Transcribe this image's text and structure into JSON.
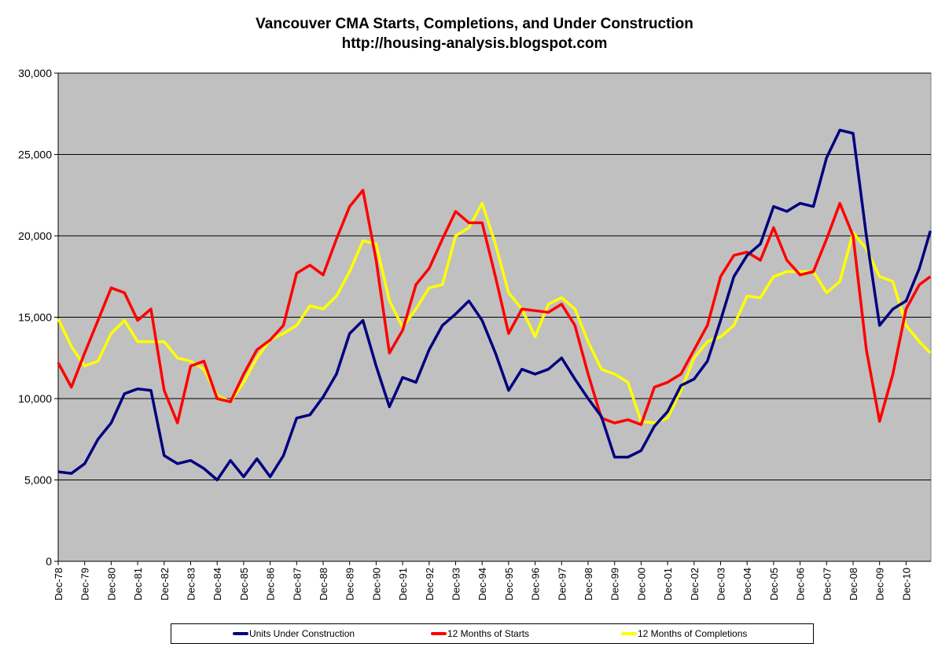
{
  "chart_data": {
    "type": "line",
    "title": "Vancouver CMA Starts, Completions, and Under Construction",
    "subtitle": "http://housing-analysis.blogspot.com",
    "xlabel": "",
    "ylabel": "",
    "ylim": [
      0,
      30000
    ],
    "yticks": [
      "0",
      "5,000",
      "10,000",
      "15,000",
      "20,000",
      "25,000",
      "30,000"
    ],
    "xticks": [
      "Dec-78",
      "Dec-79",
      "Dec-80",
      "Dec-81",
      "Dec-82",
      "Dec-83",
      "Dec-84",
      "Dec-85",
      "Dec-86",
      "Dec-87",
      "Dec-88",
      "Dec-89",
      "Dec-90",
      "Dec-91",
      "Dec-92",
      "Dec-93",
      "Dec-94",
      "Dec-95",
      "Dec-96",
      "Dec-97",
      "Dec-98",
      "Dec-99",
      "Dec-00",
      "Dec-01",
      "Dec-02",
      "Dec-03",
      "Dec-04",
      "Dec-05",
      "Dec-06",
      "Dec-07",
      "Dec-08",
      "Dec-09",
      "Dec-10"
    ],
    "grid": "horizontal",
    "legend_position": "bottom",
    "plot_background": "#c0c0c0",
    "x": [
      "1978-12",
      "1979-06",
      "1979-12",
      "1980-06",
      "1980-12",
      "1981-06",
      "1981-12",
      "1982-06",
      "1982-12",
      "1983-06",
      "1983-12",
      "1984-06",
      "1984-12",
      "1985-06",
      "1985-12",
      "1986-06",
      "1986-12",
      "1987-06",
      "1987-12",
      "1988-06",
      "1988-12",
      "1989-06",
      "1989-12",
      "1990-06",
      "1990-12",
      "1991-06",
      "1991-12",
      "1992-06",
      "1992-12",
      "1993-06",
      "1993-12",
      "1994-06",
      "1994-12",
      "1995-06",
      "1995-12",
      "1996-06",
      "1996-12",
      "1997-06",
      "1997-12",
      "1998-06",
      "1998-12",
      "1999-06",
      "1999-12",
      "2000-06",
      "2000-12",
      "2001-06",
      "2001-12",
      "2002-06",
      "2002-12",
      "2003-06",
      "2003-12",
      "2004-06",
      "2004-12",
      "2005-06",
      "2005-12",
      "2006-06",
      "2006-12",
      "2007-06",
      "2007-12",
      "2008-06",
      "2008-12",
      "2009-06",
      "2009-12",
      "2010-06",
      "2010-12",
      "2011-06",
      "2011-11"
    ],
    "series": [
      {
        "name": "Units Under Construction",
        "color": "#000080",
        "values": [
          5500,
          5400,
          6000,
          7500,
          8500,
          10300,
          10600,
          10500,
          6500,
          6000,
          6200,
          5700,
          5000,
          6200,
          5200,
          6300,
          5200,
          6500,
          8800,
          9000,
          10100,
          11500,
          14000,
          14800,
          12000,
          9500,
          11300,
          11000,
          13000,
          14500,
          15200,
          16000,
          14800,
          12800,
          10500,
          11800,
          11500,
          11800,
          12500,
          11200,
          10000,
          8900,
          6400,
          6400,
          6800,
          8300,
          9200,
          10800,
          11200,
          12300,
          14800,
          17500,
          18800,
          19500,
          21800,
          21500,
          22000,
          21800,
          24800,
          26500,
          26300,
          20000,
          14500,
          15500,
          16000,
          18000,
          20300
        ]
      },
      {
        "name": "12 Months of Starts",
        "color": "#ff0000",
        "values": [
          12200,
          10700,
          12800,
          14800,
          16800,
          16500,
          14800,
          15500,
          10500,
          8500,
          12000,
          12300,
          10000,
          9800,
          11500,
          13000,
          13600,
          14500,
          17700,
          18200,
          17600,
          19800,
          21800,
          22800,
          18500,
          12800,
          14200,
          17000,
          18000,
          19800,
          21500,
          20800,
          20800,
          17500,
          14000,
          15500,
          15400,
          15300,
          15800,
          14500,
          11500,
          8800,
          8500,
          8700,
          8400,
          10700,
          11000,
          11500,
          13000,
          14500,
          17500,
          18800,
          19000,
          18500,
          20500,
          18500,
          17600,
          17800,
          19800,
          22000,
          20000,
          13000,
          8600,
          11500,
          15500,
          17000,
          17500
        ]
      },
      {
        "name": "12 Months of Completions",
        "color": "#ffff00",
        "values": [
          14900,
          13200,
          12000,
          12300,
          14000,
          14800,
          13500,
          13500,
          13500,
          12500,
          12300,
          11800,
          10200,
          9800,
          11000,
          12500,
          13600,
          14000,
          14500,
          15700,
          15500,
          16300,
          17800,
          19700,
          19500,
          16000,
          14400,
          15500,
          16800,
          17000,
          20000,
          20500,
          22000,
          19500,
          16500,
          15500,
          13800,
          15800,
          16200,
          15500,
          13500,
          11800,
          11500,
          11000,
          8600,
          8500,
          8800,
          10500,
          12500,
          13500,
          13800,
          14500,
          16300,
          16200,
          17500,
          17800,
          17800,
          17800,
          16500,
          17200,
          20200,
          19200,
          17500,
          17200,
          14500,
          13500,
          12800
        ]
      }
    ]
  }
}
